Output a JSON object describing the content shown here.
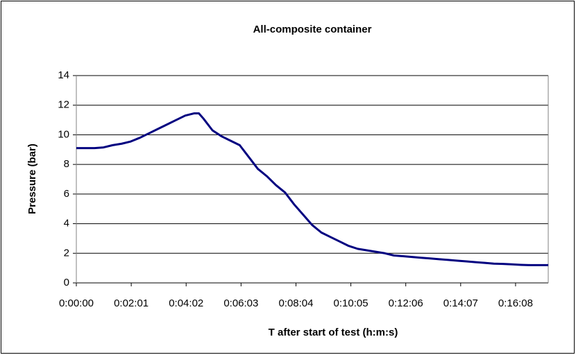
{
  "chart_data": {
    "type": "line",
    "title": "All-composite container",
    "xlabel": "T after start of test (h:m:s)",
    "ylabel": "Pressure (bar)",
    "x": [
      0,
      20,
      40,
      60,
      80,
      100,
      120,
      140,
      160,
      180,
      200,
      220,
      240,
      260,
      270,
      280,
      300,
      320,
      340,
      360,
      380,
      400,
      420,
      440,
      460,
      480,
      500,
      520,
      540,
      560,
      580,
      600,
      620,
      640,
      660,
      680,
      700,
      720,
      740,
      760,
      780,
      800,
      820,
      840,
      860,
      880,
      900,
      920,
      940,
      960,
      980,
      1000,
      1020,
      1040
    ],
    "series": [
      {
        "name": "Pressure",
        "color": "#000080",
        "values": [
          9.1,
          9.1,
          9.1,
          9.15,
          9.3,
          9.4,
          9.55,
          9.8,
          10.1,
          10.4,
          10.7,
          11.0,
          11.3,
          11.45,
          11.45,
          11.1,
          10.3,
          9.9,
          9.6,
          9.3,
          8.5,
          7.7,
          7.2,
          6.6,
          6.1,
          5.3,
          4.6,
          3.9,
          3.4,
          3.1,
          2.8,
          2.5,
          2.3,
          2.2,
          2.1,
          2.0,
          1.85,
          1.8,
          1.75,
          1.7,
          1.65,
          1.6,
          1.55,
          1.5,
          1.45,
          1.4,
          1.35,
          1.3,
          1.28,
          1.25,
          1.22,
          1.2,
          1.2,
          1.2
        ]
      }
    ],
    "xlim": [
      0,
      1040
    ],
    "xticks": [
      {
        "value": 0,
        "label": "0:00:00"
      },
      {
        "value": 121,
        "label": "0:02:01"
      },
      {
        "value": 242,
        "label": "0:04:02"
      },
      {
        "value": 363,
        "label": "0:06:03"
      },
      {
        "value": 484,
        "label": "0:08:04"
      },
      {
        "value": 605,
        "label": "0:10:05"
      },
      {
        "value": 726,
        "label": "0:12:06"
      },
      {
        "value": 847,
        "label": "0:14:07"
      },
      {
        "value": 968,
        "label": "0:16:08"
      }
    ],
    "ylim": [
      0,
      14
    ],
    "yticks": [
      0,
      2,
      4,
      6,
      8,
      10,
      12,
      14
    ],
    "grid": true
  }
}
